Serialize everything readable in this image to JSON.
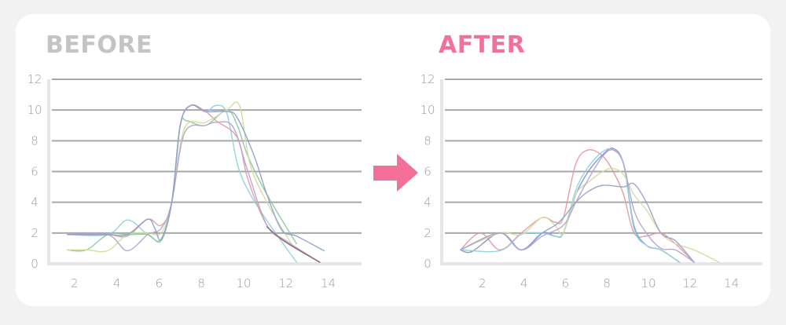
{
  "titles": {
    "before": "BEFORE",
    "after": "AFTER"
  },
  "colors": {
    "before_title": "#c4c4c4",
    "after_title": "#f2719a",
    "arrow": "#f37199",
    "grid": "#a8a8a8",
    "axis": "#e6e6e6"
  },
  "arrow_icon": "arrow-right-icon",
  "chart_data": [
    {
      "type": "line",
      "title": "BEFORE",
      "ylim": [
        0,
        12
      ],
      "xlim": [
        0,
        15
      ],
      "yticks": [
        "0",
        "2",
        "4",
        "6",
        "8",
        "10",
        "12"
      ],
      "xticks": [
        "2",
        "4",
        "6",
        "8",
        "10",
        "12",
        "14"
      ],
      "grid": true,
      "series": [
        {
          "color": "#8fd3dc",
          "points": [
            [
              1.66,
              1.9
            ],
            [
              3.57,
              1.9
            ],
            [
              4.52,
              2.85
            ],
            [
              5.46,
              1.9
            ],
            [
              6.1,
              1.6
            ],
            [
              6.6,
              4
            ],
            [
              7.0,
              9
            ],
            [
              7.5,
              10.3
            ],
            [
              8.2,
              9.9
            ],
            [
              8.7,
              10.3
            ],
            [
              9.2,
              9.8
            ],
            [
              9.7,
              6.5
            ],
            [
              10.2,
              4.8
            ],
            [
              11.1,
              2.8
            ],
            [
              12.5,
              0.1
            ]
          ]
        },
        {
          "color": "#e39aa0",
          "points": [
            [
              1.66,
              1.9
            ],
            [
              3.57,
              1.9
            ],
            [
              4.5,
              1.8
            ],
            [
              5.46,
              2.9
            ],
            [
              6.1,
              2.5
            ],
            [
              6.6,
              4
            ],
            [
              7.0,
              9
            ],
            [
              7.5,
              10.3
            ],
            [
              8.2,
              9.9
            ],
            [
              8.7,
              9.3
            ],
            [
              9.7,
              8.2
            ],
            [
              10.2,
              5.5
            ],
            [
              11.1,
              2.5
            ],
            [
              12,
              1.4
            ],
            [
              13.6,
              0.1
            ]
          ]
        },
        {
          "color": "#8cc8a2",
          "points": [
            [
              1.66,
              0.9
            ],
            [
              2.57,
              0.9
            ],
            [
              3.57,
              1.9
            ],
            [
              4.5,
              1.9
            ],
            [
              5.46,
              1.9
            ],
            [
              6.1,
              1.5
            ],
            [
              6.6,
              4
            ],
            [
              7.0,
              9
            ],
            [
              7.3,
              9.3
            ],
            [
              8.2,
              9
            ],
            [
              9.2,
              10
            ],
            [
              9.7,
              9
            ],
            [
              10.2,
              7
            ],
            [
              11.1,
              4.5
            ],
            [
              12.5,
              1.3
            ]
          ]
        },
        {
          "color": "#d3dc9c",
          "points": [
            [
              1.66,
              0.9
            ],
            [
              2.57,
              0.9
            ],
            [
              3.57,
              0.85
            ],
            [
              4.5,
              1.9
            ],
            [
              5.46,
              2.0
            ],
            [
              6.1,
              2
            ],
            [
              6.6,
              4
            ],
            [
              7.2,
              8.8
            ],
            [
              8.2,
              9.2
            ],
            [
              9.2,
              10
            ],
            [
              9.8,
              10.3
            ],
            [
              10.3,
              6.5
            ],
            [
              11.1,
              4
            ],
            [
              12.3,
              1.2
            ]
          ]
        },
        {
          "color": "#b6a2d2",
          "points": [
            [
              1.66,
              1.9
            ],
            [
              3.57,
              1.9
            ],
            [
              4.5,
              0.85
            ],
            [
              5.46,
              1.9
            ],
            [
              6.1,
              2.3
            ],
            [
              6.6,
              4
            ],
            [
              7.2,
              8.5
            ],
            [
              8.2,
              9
            ],
            [
              8.7,
              9.2
            ],
            [
              9.5,
              8.9
            ],
            [
              10.2,
              6
            ],
            [
              11.1,
              2.5
            ],
            [
              12,
              1.5
            ],
            [
              13.6,
              0.1
            ]
          ]
        },
        {
          "color": "#8d9fcb",
          "points": [
            [
              1.66,
              1.9
            ],
            [
              3.57,
              1.9
            ],
            [
              4.5,
              1.9
            ],
            [
              5.46,
              2.9
            ],
            [
              5.8,
              2.3
            ],
            [
              6.1,
              1.6
            ],
            [
              6.6,
              4
            ],
            [
              7.0,
              9
            ],
            [
              7.5,
              10.3
            ],
            [
              8.2,
              9.9
            ],
            [
              9.2,
              9.9
            ],
            [
              9.7,
              9.5
            ],
            [
              10.5,
              7
            ],
            [
              11.1,
              4.5
            ],
            [
              11.8,
              2.2
            ],
            [
              12.5,
              1.8
            ],
            [
              13.8,
              0.85
            ]
          ]
        },
        {
          "color": "#8a6670",
          "points": [
            [
              11.1,
              2.4
            ],
            [
              12,
              1.4
            ],
            [
              13.6,
              0.1
            ]
          ]
        }
      ]
    },
    {
      "type": "line",
      "title": "AFTER",
      "ylim": [
        0,
        12
      ],
      "xlim": [
        0,
        15
      ],
      "yticks": [
        "0",
        "2",
        "4",
        "6",
        "8",
        "10",
        "12"
      ],
      "xticks": [
        "2",
        "4",
        "6",
        "8",
        "10",
        "12",
        "14"
      ],
      "grid": true,
      "series": [
        {
          "color": "#e39aa0",
          "points": [
            [
              0.94,
              0.9
            ],
            [
              1.9,
              2
            ],
            [
              2.85,
              0.9
            ],
            [
              3.87,
              2
            ],
            [
              4.88,
              3
            ],
            [
              5.5,
              2.7
            ],
            [
              5.9,
              3
            ],
            [
              6.5,
              6.5
            ],
            [
              7.1,
              7.4
            ],
            [
              7.8,
              7
            ],
            [
              8.3,
              6
            ],
            [
              8.8,
              4.5
            ],
            [
              9.3,
              2
            ],
            [
              9.9,
              1.8
            ],
            [
              10.6,
              2
            ],
            [
              11.3,
              1.3
            ],
            [
              12.2,
              0.1
            ]
          ]
        },
        {
          "color": "#7d97c9",
          "points": [
            [
              0.94,
              0.9
            ],
            [
              1.5,
              0.8
            ],
            [
              2.85,
              2
            ],
            [
              3.87,
              0.9
            ],
            [
              4.88,
              2
            ],
            [
              5.5,
              1.8
            ],
            [
              5.9,
              2
            ],
            [
              6.5,
              4.5
            ],
            [
              7.1,
              6
            ],
            [
              7.8,
              7.1
            ],
            [
              8.3,
              7.5
            ],
            [
              8.8,
              6.5
            ],
            [
              9.3,
              2.5
            ],
            [
              9.9,
              1.2
            ],
            [
              10.6,
              0.9
            ],
            [
              11.5,
              0.1
            ]
          ]
        },
        {
          "color": "#8fd3dc",
          "points": [
            [
              0.94,
              0.9
            ],
            [
              2.85,
              0.85
            ],
            [
              3.87,
              1.9
            ],
            [
              4.88,
              2
            ],
            [
              5.5,
              1.8
            ],
            [
              5.9,
              2
            ],
            [
              6.5,
              4.8
            ],
            [
              7.1,
              6.3
            ],
            [
              7.8,
              7.3
            ],
            [
              8.3,
              7.4
            ],
            [
              8.8,
              6.5
            ],
            [
              9.3,
              2.3
            ],
            [
              9.9,
              1.2
            ],
            [
              10.6,
              0.9
            ],
            [
              11.5,
              0.1
            ]
          ]
        },
        {
          "color": "#d3dc9c",
          "points": [
            [
              0.94,
              0.9
            ],
            [
              2.85,
              2
            ],
            [
              3.87,
              1.9
            ],
            [
              4.88,
              3
            ],
            [
              5.5,
              2.5
            ],
            [
              5.9,
              2
            ],
            [
              6.5,
              4.5
            ],
            [
              7.1,
              5.3
            ],
            [
              7.8,
              6
            ],
            [
              8.3,
              6.2
            ],
            [
              8.8,
              5.8
            ],
            [
              9.3,
              4.5
            ],
            [
              9.9,
              3.5
            ],
            [
              10.6,
              2
            ],
            [
              11.3,
              1.3
            ],
            [
              12.2,
              0.9
            ],
            [
              13.4,
              0.1
            ]
          ]
        },
        {
          "color": "#95a3cf",
          "points": [
            [
              0.94,
              0.9
            ],
            [
              2.85,
              2
            ],
            [
              3.87,
              0.9
            ],
            [
              4.88,
              2
            ],
            [
              5.5,
              2.5
            ],
            [
              5.9,
              3
            ],
            [
              6.5,
              4
            ],
            [
              7.1,
              4.7
            ],
            [
              7.8,
              5.1
            ],
            [
              8.8,
              5.0
            ],
            [
              9.3,
              5.2
            ],
            [
              9.9,
              4
            ],
            [
              10.6,
              2
            ],
            [
              11.3,
              1.5
            ],
            [
              12.2,
              0.1
            ]
          ]
        },
        {
          "color": "#b6a2d2",
          "points": [
            [
              0.94,
              0.9
            ],
            [
              2.85,
              2
            ],
            [
              3.87,
              0.9
            ],
            [
              4.88,
              1.8
            ],
            [
              5.9,
              2.5
            ],
            [
              6.5,
              4
            ],
            [
              7.1,
              5.5
            ],
            [
              7.8,
              7
            ],
            [
              8.3,
              7.4
            ],
            [
              8.8,
              6.5
            ],
            [
              9.3,
              3.5
            ],
            [
              9.9,
              2
            ],
            [
              10.6,
              1
            ],
            [
              11.3,
              0.9
            ],
            [
              12.2,
              0.1
            ]
          ]
        }
      ]
    }
  ]
}
